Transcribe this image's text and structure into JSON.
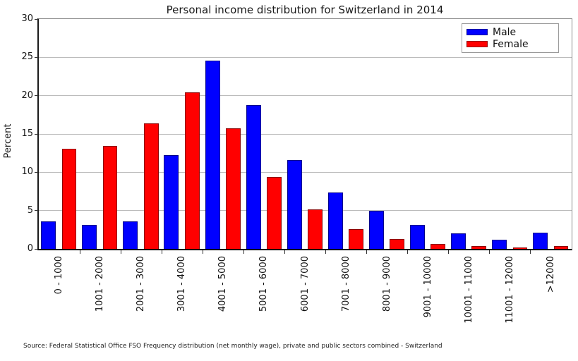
{
  "source_note": "Source: Federal Statistical Office FSO Frequency distribution (net monthly wage), private and public sectors combined - Switzerland",
  "chart_data": {
    "type": "bar",
    "title": "Personal income distribution for Switzerland in 2014",
    "xlabel": "",
    "ylabel": "Percent",
    "categories": [
      "0 - 1000",
      "1001 - 2000",
      "2001 - 3000",
      "3001 - 4000",
      "4001 - 5000",
      "5001 - 6000",
      "6001 - 7000",
      "7001 - 8000",
      "8001 - 9000",
      "9001 - 10000",
      "10001 - 11000",
      "11001 - 12000",
      ">12000"
    ],
    "series": [
      {
        "name": "Male",
        "color": "#0000ff",
        "values": [
          3.6,
          3.1,
          3.6,
          12.2,
          24.6,
          18.8,
          11.6,
          7.4,
          5.0,
          3.1,
          2.0,
          1.2,
          2.1
        ]
      },
      {
        "name": "Female",
        "color": "#ff0000",
        "values": [
          13.1,
          13.4,
          16.4,
          20.4,
          15.7,
          9.4,
          5.2,
          2.6,
          1.3,
          0.6,
          0.4,
          0.2,
          0.4
        ]
      }
    ],
    "ylim": [
      0,
      30
    ],
    "yticks": [
      0,
      5,
      10,
      15,
      20,
      25,
      30
    ],
    "grid": true,
    "legend_position": "upper right"
  }
}
